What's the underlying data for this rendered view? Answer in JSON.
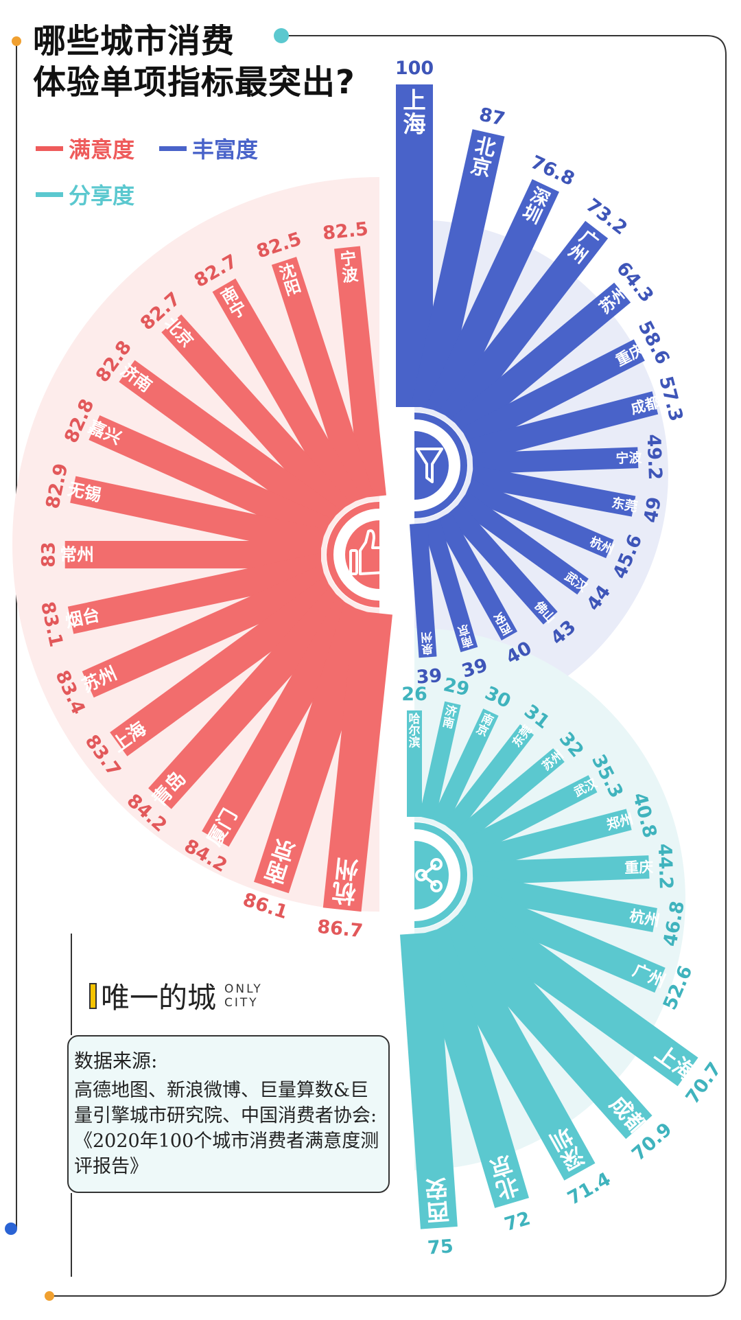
{
  "title_lines": [
    "哪些城市消费",
    "体验单项指标最突出?"
  ],
  "legend": {
    "satisfaction": "满意度",
    "richness": "丰富度",
    "sharing": "分享度"
  },
  "colors": {
    "satisfaction": "#f26d6d",
    "satisfaction_label": "#e2585a",
    "satisfaction_bg": "#fdeceb",
    "richness": "#4963c9",
    "richness_label": "#3e55b8",
    "richness_bg": "#e9ecf8",
    "sharing": "#5bc8cf",
    "sharing_label": "#3fb3bd",
    "sharing_bg": "#e9f6f7"
  },
  "icons": {
    "satisfaction": "thumbs-up-icon",
    "richness": "funnel-icon",
    "sharing": "share-icon"
  },
  "brand": {
    "name": "唯一的城",
    "en_line1": "ONLY",
    "en_line2": "CITY"
  },
  "source": {
    "heading": "数据来源:",
    "text": "高德地图、新浪微博、巨量算数&巨量引擎城市研究院、中国消费者协会:《2020年100个城市消费者满意度测评报告》"
  },
  "chart_data": [
    {
      "type": "bar",
      "name": "满意度",
      "categories": [
        "宁波",
        "沈阳",
        "南宁",
        "北京",
        "济南",
        "嘉兴",
        "无锡",
        "常州",
        "烟台",
        "苏州",
        "上海",
        "青岛",
        "厦门",
        "南京",
        "杭州"
      ],
      "values": [
        82.5,
        82.5,
        82.7,
        82.7,
        82.8,
        82.8,
        82.9,
        83,
        83.1,
        83.4,
        83.7,
        84.2,
        84.2,
        86.1,
        86.7
      ],
      "value_labels": [
        "82.5",
        "82.5",
        "82.7",
        "82.7",
        "82.8",
        "82.8",
        "82.9",
        "83",
        "83.1",
        "83.4",
        "83.7",
        "84.2",
        "84.2",
        "86.1",
        "86.7"
      ]
    },
    {
      "type": "bar",
      "name": "丰富度",
      "categories": [
        "上海",
        "北京",
        "深圳",
        "广州",
        "苏州",
        "重庆",
        "成都",
        "宁波",
        "东莞",
        "杭州",
        "武汉",
        "佛山",
        "西安",
        "南京",
        "泉州"
      ],
      "values": [
        100,
        87,
        76.8,
        73.2,
        64.3,
        58.6,
        57.3,
        49.2,
        49,
        45.6,
        44,
        43,
        40,
        39,
        39
      ],
      "value_labels": [
        "100",
        "87",
        "76.8",
        "73.2",
        "64.3",
        "58.6",
        "57.3",
        "49.2",
        "49",
        "45.6",
        "44",
        "43",
        "40",
        "39",
        "39"
      ]
    },
    {
      "type": "bar",
      "name": "分享度",
      "categories": [
        "哈尔滨",
        "济南",
        "南京",
        "东莞",
        "苏州",
        "武汉",
        "郑州",
        "重庆",
        "杭州",
        "广州",
        "上海",
        "成都",
        "深圳",
        "北京",
        "西安"
      ],
      "values": [
        26,
        29,
        30,
        31,
        32,
        35.3,
        40.8,
        44.2,
        46.8,
        52.6,
        70.7,
        70.9,
        71.4,
        72,
        75
      ],
      "value_labels": [
        "26",
        "29",
        "30",
        "31",
        "32",
        "35.3",
        "40.8",
        "44.2",
        "46.8",
        "52.6",
        "70.7",
        "70.9",
        "71.4",
        "72",
        "75"
      ]
    }
  ]
}
